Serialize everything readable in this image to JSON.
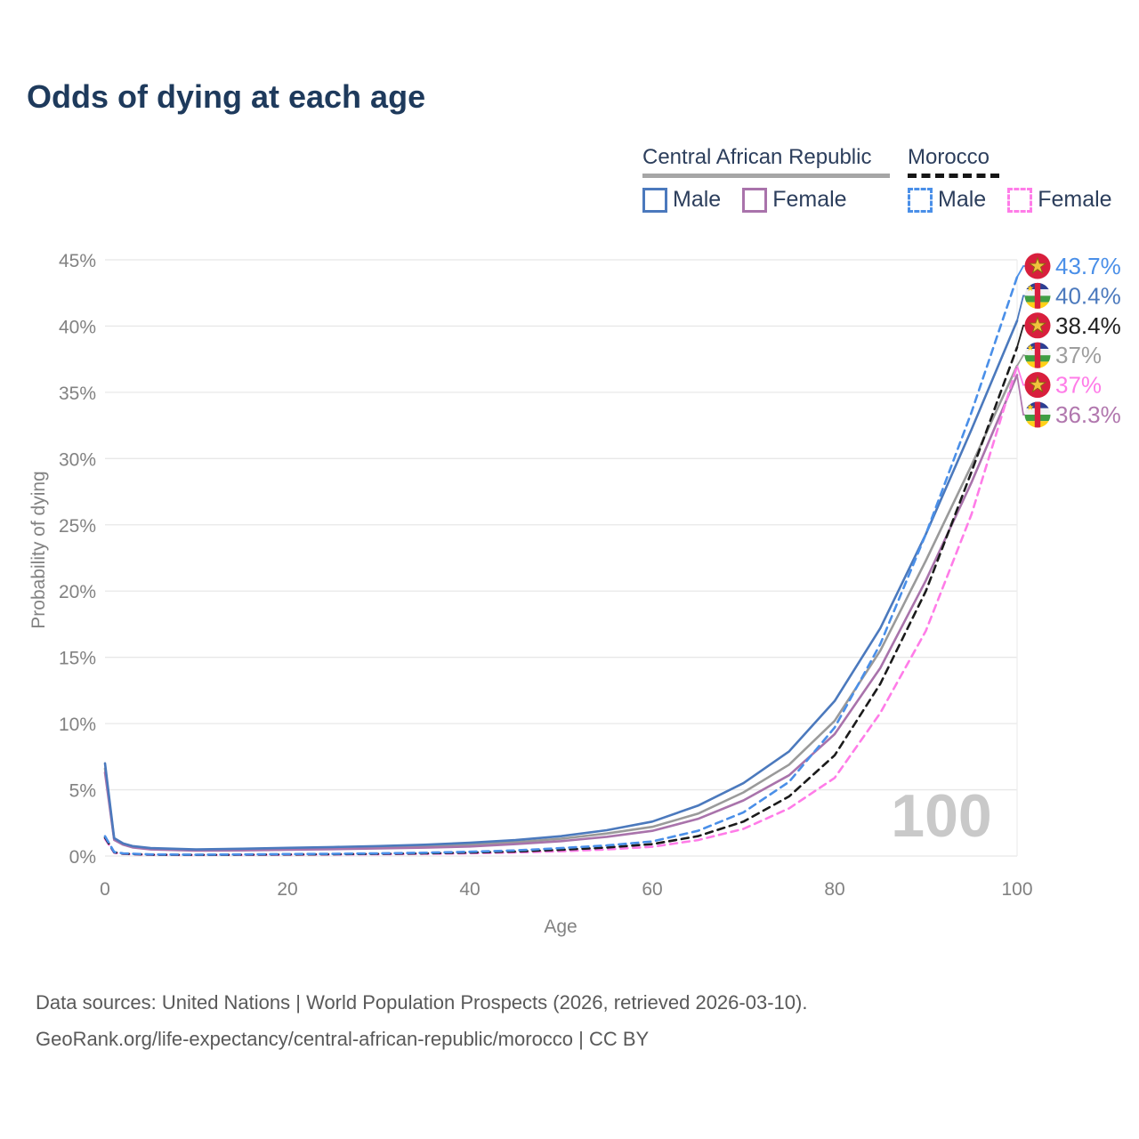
{
  "title": "Odds of dying at each age",
  "watermark": "100",
  "legend": {
    "groups": [
      {
        "name": "Central African Republic",
        "line_color": "#a6a6a6",
        "line_style": "solid",
        "items": [
          {
            "label": "Male",
            "series": "car_male"
          },
          {
            "label": "Female",
            "series": "car_female"
          }
        ]
      },
      {
        "name": "Morocco",
        "line_color": "#161616",
        "line_style": "dashed",
        "items": [
          {
            "label": "Male",
            "series": "morocco_male"
          },
          {
            "label": "Female",
            "series": "morocco_female"
          }
        ]
      }
    ]
  },
  "footer": {
    "line1": "Data sources: United Nations | World Population Prospects (2026, retrieved 2026-03-10).",
    "line2": "GeoRank.org/life-expectancy/central-african-republic/morocco | CC BY"
  },
  "chart_data": {
    "type": "line",
    "title": "Odds of dying at each age",
    "xlabel": "Age",
    "ylabel": "Probability of dying",
    "xlim": [
      0,
      100
    ],
    "ylim": [
      0,
      45
    ],
    "grid": "horizontal",
    "legend_position": "top-right",
    "x_ticks": [
      {
        "v": 0,
        "label": "0"
      },
      {
        "v": 20,
        "label": "20"
      },
      {
        "v": 40,
        "label": "40"
      },
      {
        "v": 60,
        "label": "60"
      },
      {
        "v": 80,
        "label": "80"
      },
      {
        "v": 100,
        "label": "100"
      }
    ],
    "y_ticks": [
      {
        "v": 0,
        "label": "0%"
      },
      {
        "v": 5,
        "label": "5%"
      },
      {
        "v": 10,
        "label": "10%"
      },
      {
        "v": 15,
        "label": "15%"
      },
      {
        "v": 20,
        "label": "20%"
      },
      {
        "v": 25,
        "label": "25%"
      },
      {
        "v": 30,
        "label": "30%"
      },
      {
        "v": 35,
        "label": "35%"
      },
      {
        "v": 40,
        "label": "40%"
      },
      {
        "v": 45,
        "label": "45%"
      }
    ],
    "series": [
      {
        "key": "car_both",
        "name": "Central African Republic",
        "color": "#9a9a9a",
        "dash": false,
        "points": [
          [
            0,
            6.6
          ],
          [
            1,
            1.28
          ],
          [
            2,
            0.9
          ],
          [
            3,
            0.7
          ],
          [
            5,
            0.55
          ],
          [
            10,
            0.45
          ],
          [
            15,
            0.48
          ],
          [
            20,
            0.55
          ],
          [
            25,
            0.6
          ],
          [
            30,
            0.65
          ],
          [
            35,
            0.73
          ],
          [
            40,
            0.85
          ],
          [
            45,
            1.05
          ],
          [
            50,
            1.3
          ],
          [
            55,
            1.7
          ],
          [
            60,
            2.2
          ],
          [
            65,
            3.2
          ],
          [
            70,
            4.8
          ],
          [
            75,
            6.9
          ],
          [
            80,
            10.2
          ],
          [
            85,
            15.5
          ],
          [
            90,
            22.3
          ],
          [
            95,
            29.5
          ],
          [
            100,
            37.0
          ]
        ]
      },
      {
        "key": "car_female",
        "name": "Central African Republic Female",
        "color": "#a973ab",
        "dash": false,
        "points": [
          [
            0,
            6.3
          ],
          [
            1,
            1.22
          ],
          [
            2,
            0.85
          ],
          [
            3,
            0.65
          ],
          [
            5,
            0.5
          ],
          [
            10,
            0.4
          ],
          [
            15,
            0.42
          ],
          [
            20,
            0.48
          ],
          [
            25,
            0.52
          ],
          [
            30,
            0.57
          ],
          [
            35,
            0.63
          ],
          [
            40,
            0.72
          ],
          [
            45,
            0.9
          ],
          [
            50,
            1.12
          ],
          [
            55,
            1.45
          ],
          [
            60,
            1.9
          ],
          [
            65,
            2.8
          ],
          [
            70,
            4.2
          ],
          [
            75,
            6.1
          ],
          [
            80,
            9.2
          ],
          [
            85,
            14.2
          ],
          [
            90,
            20.8
          ],
          [
            95,
            28.2
          ],
          [
            100,
            36.3
          ]
        ]
      },
      {
        "key": "car_male",
        "name": "Central African Republic Male",
        "color": "#4b79bd",
        "dash": false,
        "points": [
          [
            0,
            7.0
          ],
          [
            1,
            1.35
          ],
          [
            2,
            0.95
          ],
          [
            3,
            0.75
          ],
          [
            5,
            0.6
          ],
          [
            10,
            0.5
          ],
          [
            15,
            0.55
          ],
          [
            20,
            0.62
          ],
          [
            25,
            0.68
          ],
          [
            30,
            0.75
          ],
          [
            35,
            0.85
          ],
          [
            40,
            1.0
          ],
          [
            45,
            1.2
          ],
          [
            50,
            1.5
          ],
          [
            55,
            1.95
          ],
          [
            60,
            2.6
          ],
          [
            65,
            3.8
          ],
          [
            70,
            5.5
          ],
          [
            75,
            7.9
          ],
          [
            80,
            11.7
          ],
          [
            85,
            17.2
          ],
          [
            90,
            24.3
          ],
          [
            95,
            32.2
          ],
          [
            100,
            40.4
          ]
        ]
      },
      {
        "key": "morocco_female",
        "name": "Morocco Female",
        "color": "#ff7ce8",
        "dash": true,
        "points": [
          [
            0,
            1.3
          ],
          [
            1,
            0.25
          ],
          [
            2,
            0.16
          ],
          [
            5,
            0.09
          ],
          [
            10,
            0.08
          ],
          [
            15,
            0.09
          ],
          [
            20,
            0.1
          ],
          [
            25,
            0.12
          ],
          [
            30,
            0.14
          ],
          [
            35,
            0.17
          ],
          [
            40,
            0.21
          ],
          [
            45,
            0.27
          ],
          [
            50,
            0.36
          ],
          [
            55,
            0.5
          ],
          [
            60,
            0.7
          ],
          [
            65,
            1.2
          ],
          [
            70,
            2.05
          ],
          [
            75,
            3.6
          ],
          [
            80,
            5.9
          ],
          [
            85,
            10.8
          ],
          [
            90,
            17.0
          ],
          [
            95,
            25.8
          ],
          [
            100,
            37.0
          ]
        ]
      },
      {
        "key": "morocco_both",
        "name": "Morocco",
        "color": "#1b1b1b",
        "dash": true,
        "points": [
          [
            0,
            1.4
          ],
          [
            1,
            0.28
          ],
          [
            2,
            0.18
          ],
          [
            5,
            0.1
          ],
          [
            10,
            0.09
          ],
          [
            15,
            0.1
          ],
          [
            20,
            0.12
          ],
          [
            25,
            0.14
          ],
          [
            30,
            0.17
          ],
          [
            35,
            0.2
          ],
          [
            40,
            0.26
          ],
          [
            45,
            0.34
          ],
          [
            50,
            0.47
          ],
          [
            55,
            0.64
          ],
          [
            60,
            0.9
          ],
          [
            65,
            1.5
          ],
          [
            70,
            2.6
          ],
          [
            75,
            4.5
          ],
          [
            80,
            7.6
          ],
          [
            85,
            13.0
          ],
          [
            90,
            20.0
          ],
          [
            95,
            29.0
          ],
          [
            100,
            38.4
          ]
        ]
      },
      {
        "key": "morocco_male",
        "name": "Morocco Male",
        "color": "#4a8fe8",
        "dash": true,
        "points": [
          [
            0,
            1.5
          ],
          [
            1,
            0.3
          ],
          [
            2,
            0.2
          ],
          [
            5,
            0.12
          ],
          [
            10,
            0.1
          ],
          [
            15,
            0.12
          ],
          [
            20,
            0.15
          ],
          [
            25,
            0.17
          ],
          [
            30,
            0.2
          ],
          [
            35,
            0.25
          ],
          [
            40,
            0.32
          ],
          [
            45,
            0.42
          ],
          [
            50,
            0.6
          ],
          [
            55,
            0.8
          ],
          [
            60,
            1.1
          ],
          [
            65,
            1.9
          ],
          [
            70,
            3.3
          ],
          [
            75,
            5.6
          ],
          [
            80,
            9.7
          ],
          [
            85,
            16.0
          ],
          [
            90,
            24.3
          ],
          [
            95,
            33.5
          ],
          [
            100,
            43.7
          ]
        ]
      }
    ],
    "end_labels": [
      {
        "text": "43.7%",
        "value": 43.7,
        "series": "morocco_male",
        "flag": "morocco",
        "color": "#4a8fe8"
      },
      {
        "text": "40.4%",
        "value": 40.4,
        "series": "car_male",
        "flag": "car",
        "color": "#4b79bd"
      },
      {
        "text": "38.4%",
        "value": 38.4,
        "series": "morocco_both",
        "flag": "morocco",
        "color": "#222222"
      },
      {
        "text": "37%",
        "value": 37.0,
        "series": "car_both",
        "flag": "car",
        "color": "#9e9e9e"
      },
      {
        "text": "37%",
        "value": 37.0,
        "series": "morocco_female",
        "flag": "morocco",
        "color": "#ff7ce8"
      },
      {
        "text": "36.3%",
        "value": 36.3,
        "series": "car_female",
        "flag": "car",
        "color": "#b177ae"
      }
    ]
  }
}
